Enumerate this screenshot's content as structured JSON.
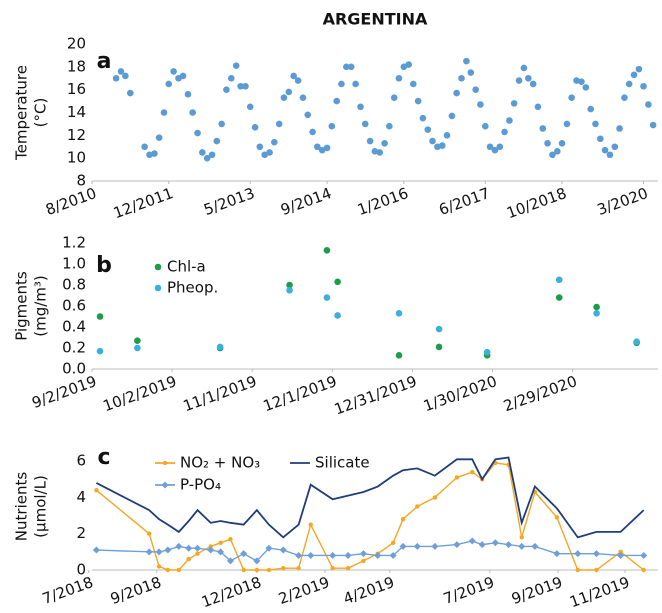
{
  "chart_data": [
    {
      "type": "scatter",
      "title": "ARGENTINA",
      "label": "a",
      "ylabel": [
        "Temperature",
        "(°C)"
      ],
      "x": [
        "2011-01",
        "2011-02",
        "2011-03",
        "2011-04",
        "2011-05",
        "2011-06",
        "2011-07",
        "2011-08",
        "2011-09",
        "2011-10",
        "2011-11",
        "2011-12",
        "2012-01",
        "2012-02",
        "2012-03",
        "2012-04",
        "2012-05",
        "2012-06",
        "2012-07",
        "2012-08",
        "2012-09",
        "2012-10",
        "2012-11",
        "2012-12",
        "2013-01",
        "2013-02",
        "2013-03",
        "2013-04",
        "2013-05",
        "2013-06",
        "2013-07",
        "2013-08",
        "2013-09",
        "2013-10",
        "2013-11",
        "2013-12",
        "2014-01",
        "2014-02",
        "2014-03",
        "2014-04",
        "2014-05",
        "2014-06",
        "2014-07",
        "2014-08",
        "2014-09",
        "2014-10",
        "2014-11",
        "2014-12",
        "2015-01",
        "2015-02",
        "2015-03",
        "2015-04",
        "2015-05",
        "2015-06",
        "2015-07",
        "2015-08",
        "2015-09",
        "2015-10",
        "2015-11",
        "2015-12",
        "2016-01",
        "2016-02",
        "2016-03",
        "2016-04",
        "2016-05",
        "2016-06",
        "2016-07",
        "2016-08",
        "2016-09",
        "2016-10",
        "2016-11",
        "2016-12",
        "2017-01",
        "2017-02",
        "2017-03",
        "2017-04",
        "2017-05",
        "2017-06",
        "2017-07",
        "2017-08",
        "2017-09",
        "2017-10",
        "2017-11",
        "2017-12",
        "2018-01",
        "2018-02",
        "2018-03",
        "2018-04",
        "2018-05",
        "2018-06",
        "2018-07",
        "2018-08",
        "2018-09",
        "2018-10",
        "2018-11",
        "2018-12",
        "2019-01",
        "2019-02",
        "2019-03",
        "2019-04",
        "2019-05",
        "2019-06",
        "2019-07",
        "2019-08",
        "2019-09",
        "2019-10",
        "2019-11",
        "2019-12",
        "2020-01",
        "2020-02",
        "2020-03",
        "2020-04",
        "2020-05"
      ],
      "series": [
        {
          "name": "Temperature",
          "color": "#5b9bd5",
          "values": [
            17.0,
            17.6,
            17.2,
            15.7,
            null,
            null,
            11.0,
            10.3,
            10.4,
            11.8,
            14.0,
            16.5,
            17.6,
            17.0,
            17.2,
            15.6,
            14.0,
            12.2,
            10.5,
            10.0,
            10.3,
            11.5,
            13.0,
            16.0,
            17.0,
            18.1,
            16.3,
            16.3,
            14.5,
            12.7,
            11.0,
            10.3,
            10.5,
            11.4,
            13.0,
            15.3,
            15.8,
            17.2,
            16.8,
            15.3,
            13.8,
            12.3,
            11.0,
            10.7,
            10.9,
            12.8,
            15.0,
            16.5,
            18.0,
            18.0,
            16.5,
            14.5,
            13.0,
            11.5,
            10.6,
            10.5,
            11.3,
            12.8,
            15.3,
            17.0,
            18.0,
            18.2,
            16.5,
            15.0,
            13.5,
            12.5,
            11.5,
            11.0,
            11.1,
            12.0,
            13.7,
            15.7,
            17.0,
            18.5,
            17.5,
            16.0,
            14.7,
            12.8,
            11.0,
            10.7,
            11.0,
            12.3,
            13.3,
            14.8,
            16.8,
            17.9,
            17.0,
            16.5,
            14.5,
            12.6,
            11.3,
            10.3,
            10.6,
            11.3,
            13.0,
            15.3,
            16.8,
            16.7,
            16.2,
            14.3,
            13.0,
            11.7,
            10.7,
            10.3,
            11.0,
            12.6,
            15.3,
            16.5,
            17.3,
            17.8,
            16.3,
            14.7,
            12.9
          ]
        }
      ],
      "xlim": [
        "2010-08",
        "2020-06"
      ],
      "xticks": [
        {
          "value": "2010-08",
          "label": "8/2010"
        },
        {
          "value": "2011-12",
          "label": "12/2011"
        },
        {
          "value": "2013-05",
          "label": "5/2013"
        },
        {
          "value": "2014-09",
          "label": "9/2014"
        },
        {
          "value": "2016-01",
          "label": "1/2016"
        },
        {
          "value": "2017-06",
          "label": "6/2017"
        },
        {
          "value": "2018-10",
          "label": "10/2018"
        },
        {
          "value": "2020-03",
          "label": "3/2020"
        }
      ],
      "ylim": [
        8,
        20
      ],
      "yticks": [
        8,
        10,
        12,
        14,
        16,
        18,
        20
      ]
    },
    {
      "type": "scatter",
      "label": "b",
      "ylabel": [
        "Pigments",
        "(mg/m³)"
      ],
      "x": [
        "2019-09-05",
        "2019-09-19",
        "2019-10-20",
        "2019-11-15",
        "2019-11-29",
        "2019-12-03",
        "2019-12-26",
        "2020-01-10",
        "2020-01-28",
        "2020-02-24",
        "2020-03-09",
        "2020-03-24"
      ],
      "series": [
        {
          "name": "Chl-a",
          "color": "#1a9e4a",
          "values": [
            0.5,
            0.27,
            0.2,
            0.8,
            1.13,
            0.83,
            0.13,
            0.21,
            0.13,
            0.68,
            0.59,
            0.25
          ]
        },
        {
          "name": "Pheop.",
          "color": "#3ab0e0",
          "values": [
            0.17,
            0.2,
            0.21,
            0.75,
            0.68,
            0.51,
            0.53,
            0.38,
            0.16,
            0.85,
            0.53,
            0.26
          ]
        }
      ],
      "xlim": [
        "2019-09-02",
        "2020-04-01"
      ],
      "xticks": [
        {
          "value": "2019-09-02",
          "label": "9/2/2019"
        },
        {
          "value": "2019-10-02",
          "label": "10/2/2019"
        },
        {
          "value": "2019-11-01",
          "label": "11/1/2019"
        },
        {
          "value": "2019-12-01",
          "label": "12/1/2019"
        },
        {
          "value": "2019-12-31",
          "label": "12/31/2019"
        },
        {
          "value": "2020-01-30",
          "label": "1/30/2020"
        },
        {
          "value": "2020-02-29",
          "label": "2/29/2020"
        }
      ],
      "ylim": [
        0,
        1.2
      ],
      "yticks": [
        {
          "value": 0,
          "label": "0.0"
        },
        0.2,
        0.4,
        0.6,
        0.8,
        {
          "value": 1,
          "label": "1.0"
        },
        1.2
      ]
    },
    {
      "type": "line",
      "label": "c",
      "ylabel": [
        "Nutrients",
        "(μmol/L)"
      ],
      "x": [
        "2018-07-08",
        "2018-08-25",
        "2018-09-03",
        "2018-09-11",
        "2018-09-21",
        "2018-09-30",
        "2018-10-08",
        "2018-10-20",
        "2018-10-29",
        "2018-11-07",
        "2018-11-19",
        "2018-12-01",
        "2018-12-12",
        "2018-12-25",
        "2019-01-08",
        "2019-01-19",
        "2019-02-08",
        "2019-02-22",
        "2019-03-08",
        "2019-03-21",
        "2019-04-04",
        "2019-04-13",
        "2019-04-26",
        "2019-05-12",
        "2019-06-01",
        "2019-06-15",
        "2019-06-24",
        "2019-07-06",
        "2019-07-18",
        "2019-07-30",
        "2019-08-11",
        "2019-08-31",
        "2019-09-19",
        "2019-10-06",
        "2019-10-28",
        "2019-11-18"
      ],
      "series": [
        {
          "name": "NO₂ + NO₃",
          "color": "#f5a623",
          "marker": "circle",
          "values": [
            4.4,
            2.0,
            0.2,
            0.0,
            0.0,
            0.6,
            0.9,
            1.3,
            1.5,
            1.7,
            0.0,
            0.0,
            0.0,
            0.1,
            0.1,
            2.5,
            0.1,
            0.1,
            0.5,
            0.9,
            1.5,
            2.8,
            3.5,
            4.0,
            5.1,
            5.4,
            5.0,
            5.9,
            5.8,
            1.8,
            4.3,
            2.9,
            0.0,
            0.0,
            1.0,
            0.0
          ]
        },
        {
          "name": "Silicate",
          "color": "#1f3d7a",
          "values": [
            4.8,
            3.3,
            2.8,
            2.5,
            2.1,
            2.7,
            3.3,
            2.6,
            2.7,
            2.6,
            2.5,
            3.3,
            2.5,
            1.8,
            2.5,
            4.7,
            3.9,
            4.1,
            4.3,
            4.6,
            5.2,
            5.5,
            5.6,
            5.2,
            6.1,
            6.1,
            5.0,
            6.1,
            6.2,
            2.6,
            4.6,
            3.4,
            1.8,
            2.1,
            2.1,
            3.3
          ]
        },
        {
          "name": "P-PO₄",
          "color": "#6f9fd8",
          "marker": "diamond",
          "values": [
            1.1,
            1.0,
            1.0,
            1.1,
            1.3,
            1.2,
            1.2,
            1.1,
            1.0,
            0.5,
            0.9,
            0.5,
            1.2,
            1.1,
            0.8,
            0.8,
            0.8,
            0.8,
            0.9,
            0.8,
            0.8,
            1.3,
            1.3,
            1.3,
            1.4,
            1.6,
            1.4,
            1.5,
            1.4,
            1.3,
            1.3,
            0.9,
            0.9,
            0.9,
            0.8,
            0.8
          ]
        }
      ],
      "xlim": [
        "2018-07-04",
        "2019-12-01"
      ],
      "xticks": [
        {
          "value": "2018-07-01",
          "label": "7/2018"
        },
        {
          "value": "2018-09-01",
          "label": "9/2018"
        },
        {
          "value": "2018-12-01",
          "label": "12/2018"
        },
        {
          "value": "2019-02-01",
          "label": "2/2019"
        },
        {
          "value": "2019-04-01",
          "label": "4/2019"
        },
        {
          "value": "2019-07-01",
          "label": "7/2019"
        },
        {
          "value": "2019-09-01",
          "label": "9/2019"
        },
        {
          "value": "2019-11-01",
          "label": "11/2019"
        }
      ],
      "ylim": [
        0,
        7
      ],
      "yticks": [
        0,
        2,
        4,
        6
      ]
    }
  ]
}
